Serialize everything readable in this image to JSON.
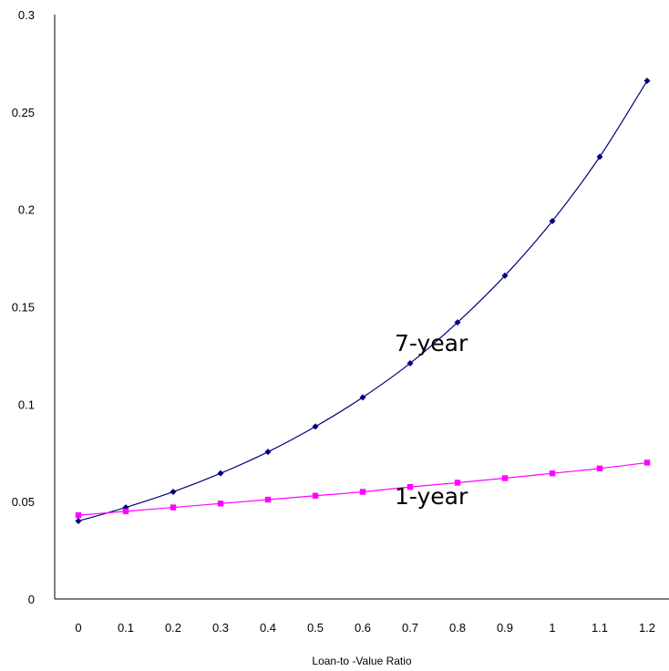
{
  "chart_data": {
    "type": "line",
    "title": "",
    "xlabel": "Loan-to -Value Ratio",
    "ylabel": "",
    "x": [
      0,
      0.1,
      0.2,
      0.3,
      0.4,
      0.5,
      0.6,
      0.7,
      0.8,
      0.9,
      1,
      1.1,
      1.2
    ],
    "x_tick_labels": [
      "0",
      "0.1",
      "0.2",
      "0.3",
      "0.4",
      "0.5",
      "0.6",
      "0.7",
      "0.8",
      "0.9",
      "1",
      "1.1",
      "1.2"
    ],
    "ylim": [
      0,
      0.3
    ],
    "y_ticks": [
      0,
      0.05,
      0.1,
      0.15,
      0.2,
      0.25,
      0.3
    ],
    "y_tick_labels": [
      "0",
      "0.05",
      "0.1",
      "0.15",
      "0.2",
      "0.25",
      "0.3"
    ],
    "grid": false,
    "legend": "none",
    "series": [
      {
        "name": "7-year",
        "color": "#000080",
        "marker": "diamond",
        "values": [
          0.04,
          0.047,
          0.055,
          0.0645,
          0.0755,
          0.0885,
          0.1035,
          0.121,
          0.142,
          0.166,
          0.194,
          0.227,
          0.266
        ]
      },
      {
        "name": "1-year",
        "color": "#ff00ff",
        "marker": "square",
        "values": [
          0.043,
          0.045,
          0.047,
          0.049,
          0.051,
          0.053,
          0.055,
          0.0575,
          0.0597,
          0.062,
          0.0645,
          0.067,
          0.07
        ]
      }
    ]
  }
}
